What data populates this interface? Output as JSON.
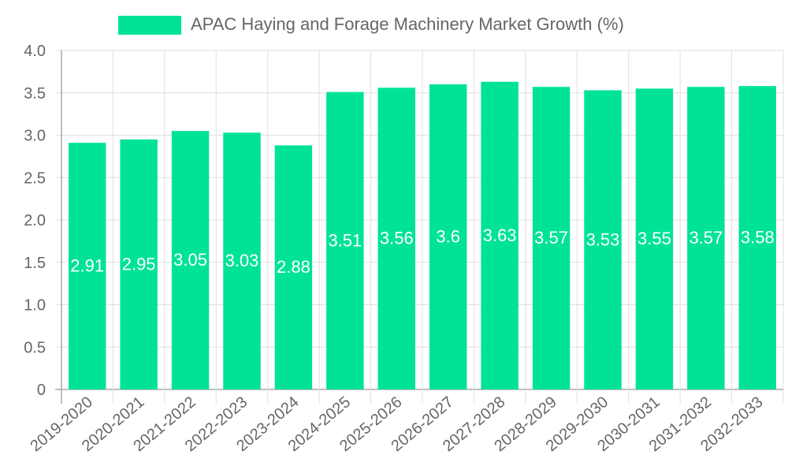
{
  "legend": {
    "label": "APAC Haying and Forage Machinery Market Growth (%)",
    "color": "#00e396"
  },
  "chart_data": {
    "type": "bar",
    "title": "",
    "xlabel": "",
    "ylabel": "",
    "ylim": [
      0,
      4.0
    ],
    "yticks": [
      "0",
      "0.5",
      "1.0",
      "1.5",
      "2.0",
      "2.5",
      "3.0",
      "3.5",
      "4.0"
    ],
    "grid": true,
    "legend_position": "top",
    "categories": [
      "2019-2020",
      "2020-2021",
      "2021-2022",
      "2022-2023",
      "2023-2024",
      "2024-2025",
      "2025-2026",
      "2026-2027",
      "2027-2028",
      "2028-2029",
      "2029-2030",
      "2030-2031",
      "2031-2032",
      "2032-2033"
    ],
    "series": [
      {
        "name": "APAC Haying and Forage Machinery Market Growth (%)",
        "color": "#00e396",
        "values": [
          2.91,
          2.95,
          3.05,
          3.03,
          2.88,
          3.51,
          3.56,
          3.6,
          3.63,
          3.57,
          3.53,
          3.55,
          3.57,
          3.58
        ]
      }
    ]
  }
}
